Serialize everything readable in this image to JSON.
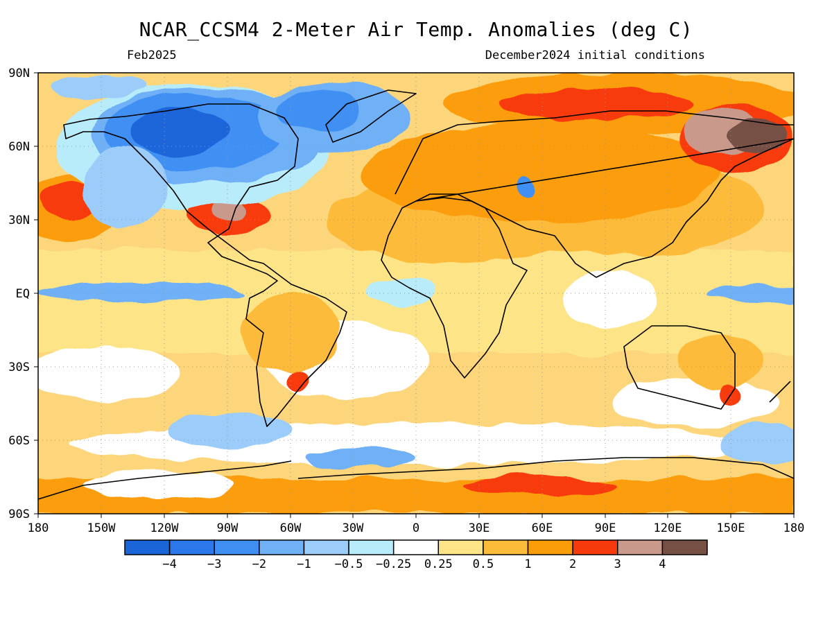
{
  "title": "NCAR_CCSM4 2-Meter Air Temp. Anomalies (deg C)",
  "valid_month": "Feb2025",
  "init_conditions": "December2024 initial conditions",
  "map": {
    "lon_ticks": [
      "180",
      "150W",
      "120W",
      "90W",
      "60W",
      "30W",
      "0",
      "30E",
      "60E",
      "90E",
      "120E",
      "150E",
      "180"
    ],
    "lat_ticks": [
      "90N",
      "60N",
      "30N",
      "EQ",
      "30S",
      "60S",
      "90S"
    ],
    "extent": {
      "lon": [
        -180,
        180
      ],
      "lat": [
        -90,
        90
      ]
    },
    "grid_lines": "dotted"
  },
  "colorbar": {
    "colors": [
      "#1a66d9",
      "#2a78ea",
      "#3f8ff2",
      "#6fb0f6",
      "#9ccdfa",
      "#b8ecfb",
      "#ffffff",
      "#fde487",
      "#fdbb3a",
      "#fb9d08",
      "#f73a0c",
      "#c9998c",
      "#765045"
    ],
    "labels": [
      "−4",
      "−3",
      "−2",
      "−1",
      "−0.5",
      "−0.25",
      "0.25",
      "0.5",
      "1",
      "2",
      "3",
      "4"
    ]
  },
  "anomaly_regions": [
    {
      "name": "Canada / northern North America",
      "level": -3
    },
    {
      "name": "Greenland",
      "level": -2
    },
    {
      "name": "Eastern United States",
      "level": 3
    },
    {
      "name": "Eastern Siberia",
      "level": 4
    },
    {
      "name": "Northern Eurasia",
      "level": 3
    },
    {
      "name": "East Antarctica coast",
      "level": 3
    },
    {
      "name": "Equatorial Pacific",
      "level": -1
    },
    {
      "name": "Sahara / Middle East",
      "level": 1
    },
    {
      "name": "Southern Ocean",
      "level": -0.5
    }
  ]
}
